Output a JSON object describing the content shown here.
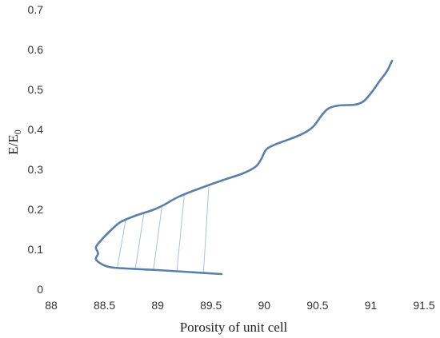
{
  "chart_data": {
    "type": "line",
    "title": "",
    "xlabel": "Porosity of unit cell",
    "ylabel_main": "E/E",
    "ylabel_sub": "0",
    "xlim": [
      88,
      91.5
    ],
    "ylim": [
      0,
      0.7
    ],
    "xticks": [
      "88",
      "88.5",
      "89",
      "89.5",
      "90",
      "90.5",
      "91",
      "91.5"
    ],
    "yticks": [
      "0",
      "0.1",
      "0.2",
      "0.3",
      "0.4",
      "0.5",
      "0.6",
      "0.7"
    ],
    "grid": false,
    "legend": "none",
    "line_color": "#5a7fa8",
    "hatch_color": "#a9c2da",
    "series": [
      {
        "values": [
          [
            89.6,
            0.038
          ],
          [
            89.3,
            0.043
          ],
          [
            89.0,
            0.048
          ],
          [
            88.7,
            0.052
          ],
          [
            88.56,
            0.055
          ],
          [
            88.48,
            0.062
          ],
          [
            88.42,
            0.075
          ],
          [
            88.44,
            0.09
          ],
          [
            88.42,
            0.105
          ],
          [
            88.46,
            0.12
          ],
          [
            88.55,
            0.145
          ],
          [
            88.65,
            0.168
          ],
          [
            88.8,
            0.185
          ],
          [
            88.95,
            0.198
          ],
          [
            89.05,
            0.21
          ],
          [
            89.2,
            0.232
          ],
          [
            89.4,
            0.253
          ],
          [
            89.6,
            0.272
          ],
          [
            89.8,
            0.29
          ],
          [
            89.92,
            0.307
          ],
          [
            89.97,
            0.325
          ],
          [
            90.02,
            0.35
          ],
          [
            90.1,
            0.362
          ],
          [
            90.2,
            0.372
          ],
          [
            90.3,
            0.382
          ],
          [
            90.4,
            0.395
          ],
          [
            90.47,
            0.41
          ],
          [
            90.53,
            0.432
          ],
          [
            90.6,
            0.452
          ],
          [
            90.7,
            0.46
          ],
          [
            90.85,
            0.462
          ],
          [
            90.93,
            0.47
          ],
          [
            91.0,
            0.49
          ],
          [
            91.08,
            0.52
          ],
          [
            91.15,
            0.545
          ],
          [
            91.2,
            0.572
          ]
        ]
      }
    ],
    "hatch_lines": [
      [
        [
          88.62,
          0.053
        ],
        [
          88.7,
          0.175
        ]
      ],
      [
        [
          88.79,
          0.051
        ],
        [
          88.87,
          0.19
        ]
      ],
      [
        [
          88.96,
          0.049
        ],
        [
          89.04,
          0.208
        ]
      ],
      [
        [
          89.18,
          0.045
        ],
        [
          89.25,
          0.238
        ]
      ],
      [
        [
          89.43,
          0.043
        ],
        [
          89.48,
          0.258
        ]
      ]
    ]
  }
}
